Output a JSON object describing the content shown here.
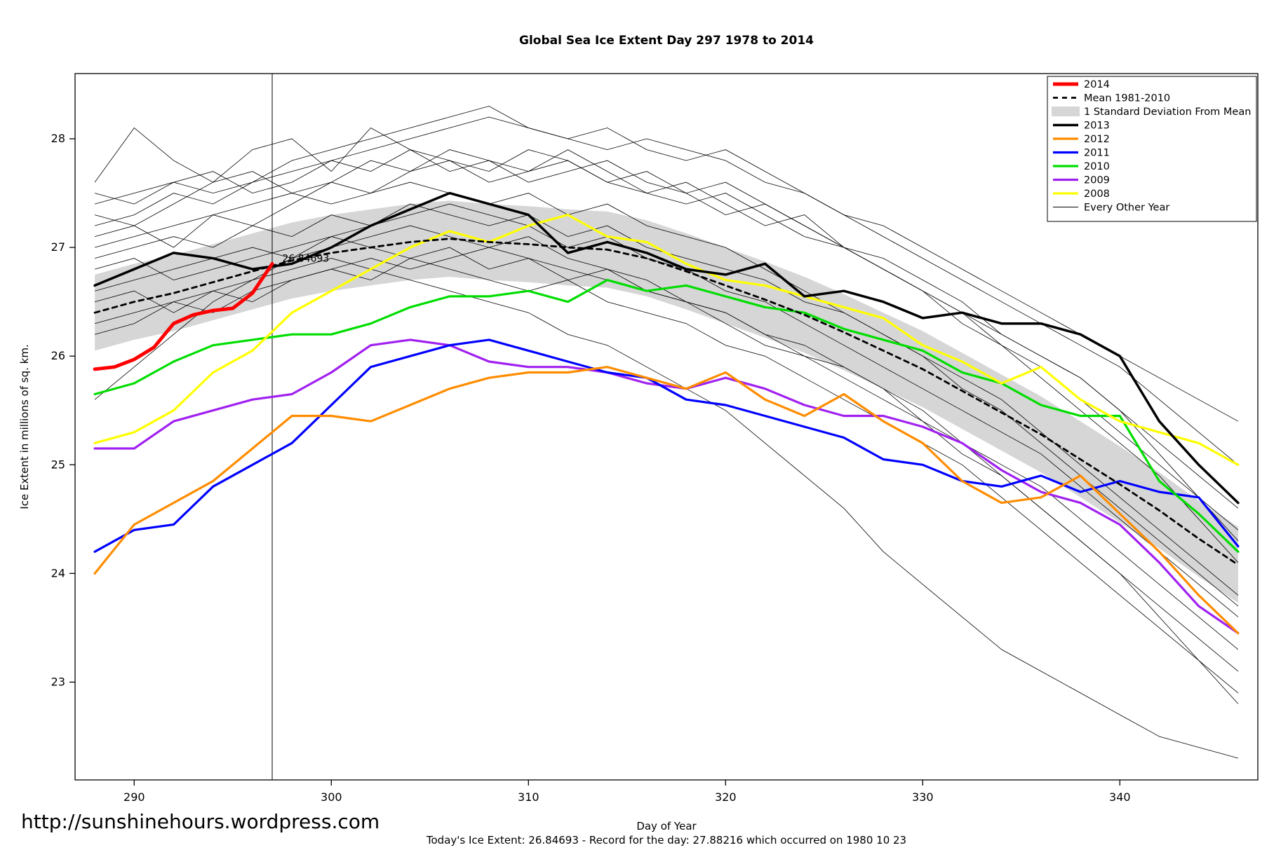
{
  "chart_data": {
    "type": "line",
    "title": "Global Sea Ice Extent Day 297 1978 to 2014",
    "xlabel": "Day of Year",
    "ylabel": "Ice Extent in millions of sq. km.",
    "xlim": [
      287,
      347
    ],
    "ylim": [
      22.1,
      28.6
    ],
    "x_ticks": [
      290,
      300,
      310,
      320,
      330,
      340
    ],
    "y_ticks": [
      23,
      24,
      25,
      26,
      27,
      28
    ],
    "grid": false,
    "legend_position": "top-right",
    "x": [
      288,
      290,
      292,
      294,
      296,
      298,
      300,
      302,
      304,
      306,
      308,
      310,
      312,
      314,
      316,
      318,
      320,
      322,
      324,
      326,
      328,
      330,
      332,
      334,
      336,
      338,
      340,
      342,
      344,
      346
    ],
    "band": {
      "label": "1 Standard Deviation From Mean",
      "color": "#d6d6d6",
      "upper": [
        26.75,
        26.85,
        26.93,
        27.03,
        27.13,
        27.23,
        27.3,
        27.35,
        27.4,
        27.43,
        27.4,
        27.38,
        27.35,
        27.33,
        27.25,
        27.13,
        27.0,
        26.87,
        26.73,
        26.57,
        26.4,
        26.23,
        26.03,
        25.83,
        25.63,
        25.4,
        25.17,
        24.93,
        24.67,
        24.43
      ],
      "lower": [
        26.05,
        26.15,
        26.23,
        26.33,
        26.43,
        26.53,
        26.6,
        26.65,
        26.7,
        26.73,
        26.7,
        26.68,
        26.65,
        26.63,
        26.55,
        26.43,
        26.3,
        26.17,
        26.03,
        25.87,
        25.7,
        25.53,
        25.33,
        25.13,
        24.93,
        24.7,
        24.47,
        24.23,
        23.97,
        23.73
      ]
    },
    "other_years": {
      "label": "Every Other Year",
      "color": "#000000",
      "width": 0.8,
      "series": [
        [
          27.4,
          27.5,
          27.6,
          27.5,
          27.6,
          27.7,
          27.8,
          27.9,
          28.0,
          28.1,
          28.2,
          28.1,
          28.0,
          27.9,
          28.0,
          27.9,
          27.8,
          27.6,
          27.5,
          27.3,
          27.1,
          26.9,
          26.7,
          26.5,
          26.3,
          26.1,
          25.9,
          25.6,
          25.3,
          25.0
        ],
        [
          27.1,
          27.2,
          27.0,
          27.3,
          27.2,
          27.4,
          27.6,
          27.5,
          27.7,
          27.8,
          27.6,
          27.7,
          27.9,
          27.7,
          27.5,
          27.6,
          27.4,
          27.2,
          27.3,
          27.0,
          26.8,
          26.6,
          26.4,
          26.2,
          26.0,
          25.8,
          25.5,
          25.2,
          24.9,
          24.6
        ],
        [
          27.6,
          28.1,
          27.8,
          27.6,
          27.7,
          27.5,
          27.6,
          27.8,
          27.7,
          27.9,
          27.8,
          27.7,
          27.8,
          27.6,
          27.7,
          27.5,
          27.6,
          27.4,
          27.2,
          27.0,
          26.9,
          26.7,
          26.5,
          26.2,
          26.0,
          25.8,
          25.5,
          25.1,
          24.7,
          24.3
        ],
        [
          26.9,
          27.0,
          27.1,
          27.0,
          27.2,
          27.1,
          27.3,
          27.2,
          27.4,
          27.3,
          27.2,
          27.3,
          27.1,
          27.2,
          27.0,
          26.9,
          26.8,
          26.7,
          26.5,
          26.4,
          26.2,
          26.0,
          25.8,
          25.6,
          25.3,
          25.0,
          24.7,
          24.4,
          24.1,
          23.8
        ],
        [
          26.6,
          26.7,
          26.8,
          26.9,
          27.0,
          26.9,
          27.1,
          27.0,
          26.9,
          27.0,
          26.8,
          26.9,
          26.7,
          26.8,
          26.6,
          26.5,
          26.4,
          26.2,
          26.0,
          25.9,
          25.7,
          25.5,
          25.2,
          25.0,
          24.8,
          24.5,
          24.2,
          23.9,
          23.6,
          23.3
        ],
        [
          25.6,
          25.9,
          26.2,
          26.5,
          26.7,
          26.9,
          27.0,
          27.1,
          27.2,
          27.1,
          27.0,
          27.1,
          26.9,
          26.8,
          26.7,
          26.5,
          26.4,
          26.2,
          26.1,
          25.9,
          25.7,
          25.4,
          25.2,
          24.9,
          24.6,
          24.3,
          24.0,
          23.6,
          23.2,
          22.8
        ],
        [
          26.3,
          26.4,
          26.5,
          26.6,
          26.7,
          26.8,
          26.9,
          26.8,
          26.7,
          26.6,
          26.5,
          26.4,
          26.2,
          26.1,
          25.9,
          25.7,
          25.5,
          25.2,
          24.9,
          24.6,
          24.2,
          23.9,
          23.6,
          23.3,
          23.1,
          22.9,
          22.7,
          22.5,
          22.4,
          22.3
        ],
        [
          27.0,
          27.1,
          27.2,
          27.3,
          27.4,
          27.5,
          27.4,
          27.5,
          27.6,
          27.5,
          27.4,
          27.5,
          27.3,
          27.4,
          27.2,
          27.1,
          27.0,
          26.8,
          26.6,
          26.4,
          26.2,
          26.0,
          25.7,
          25.5,
          25.2,
          24.9,
          24.6,
          24.3,
          24.0,
          23.7
        ],
        [
          26.8,
          26.9,
          26.7,
          26.8,
          26.9,
          27.0,
          27.1,
          27.2,
          27.3,
          27.4,
          27.3,
          27.2,
          27.0,
          27.1,
          26.9,
          26.8,
          26.6,
          26.5,
          26.3,
          26.1,
          25.9,
          25.7,
          25.5,
          25.3,
          25.1,
          24.8,
          24.5,
          24.2,
          23.9,
          23.6
        ],
        [
          27.2,
          27.3,
          27.5,
          27.4,
          27.6,
          27.8,
          27.9,
          28.0,
          28.1,
          28.2,
          28.3,
          28.1,
          28.0,
          28.1,
          27.9,
          27.8,
          27.9,
          27.7,
          27.5,
          27.3,
          27.2,
          27.0,
          26.8,
          26.6,
          26.4,
          26.2,
          26.0,
          25.8,
          25.6,
          25.4
        ],
        [
          26.5,
          26.6,
          26.4,
          26.6,
          26.5,
          26.7,
          26.8,
          26.9,
          26.8,
          26.9,
          27.0,
          26.9,
          26.8,
          26.7,
          26.6,
          26.5,
          26.3,
          26.1,
          26.0,
          25.8,
          25.6,
          25.4,
          25.1,
          24.9,
          24.6,
          24.3,
          24.0,
          23.7,
          23.4,
          23.1
        ],
        [
          27.3,
          27.2,
          27.4,
          27.6,
          27.9,
          28.0,
          27.7,
          28.1,
          27.9,
          27.7,
          27.8,
          27.6,
          27.7,
          27.8,
          27.6,
          27.5,
          27.3,
          27.4,
          27.2,
          27.0,
          26.8,
          26.6,
          26.4,
          26.1,
          25.9,
          25.6,
          25.3,
          25.0,
          24.7,
          24.4
        ],
        [
          26.2,
          26.3,
          26.5,
          26.4,
          26.6,
          26.7,
          26.8,
          26.7,
          26.9,
          26.8,
          26.7,
          26.6,
          26.7,
          26.5,
          26.4,
          26.3,
          26.1,
          26.0,
          25.8,
          25.6,
          25.4,
          25.2,
          25.0,
          24.7,
          24.4,
          24.1,
          23.8,
          23.5,
          23.2,
          22.9
        ],
        [
          27.5,
          27.4,
          27.6,
          27.7,
          27.5,
          27.6,
          27.8,
          27.7,
          27.9,
          27.8,
          27.7,
          27.9,
          27.8,
          27.6,
          27.5,
          27.4,
          27.5,
          27.3,
          27.1,
          27.0,
          26.8,
          26.6,
          26.3,
          26.1,
          25.8,
          25.5,
          25.2,
          24.9,
          24.5,
          24.1
        ]
      ]
    },
    "series": [
      {
        "name": "2009",
        "color": "#a020f0",
        "width": 3.2,
        "values": [
          25.15,
          25.15,
          25.4,
          25.5,
          25.6,
          25.65,
          25.85,
          26.1,
          26.15,
          26.1,
          25.95,
          25.9,
          25.9,
          25.85,
          25.75,
          25.7,
          25.8,
          25.7,
          25.55,
          25.45,
          25.45,
          25.35,
          25.2,
          24.95,
          24.75,
          24.65,
          24.45,
          24.1,
          23.7,
          23.45
        ]
      },
      {
        "name": "2011",
        "color": "#0000ff",
        "width": 3.2,
        "values": [
          24.2,
          24.4,
          24.45,
          24.8,
          25.0,
          25.2,
          25.55,
          25.9,
          26.0,
          26.1,
          26.15,
          26.05,
          25.95,
          25.85,
          25.8,
          25.6,
          25.55,
          25.45,
          25.35,
          25.25,
          25.05,
          25.0,
          24.85,
          24.8,
          24.9,
          24.75,
          24.85,
          24.75,
          24.7,
          24.25
        ]
      },
      {
        "name": "2012",
        "color": "#ff8c00",
        "width": 3.2,
        "values": [
          24.0,
          24.45,
          24.65,
          24.85,
          25.15,
          25.45,
          25.45,
          25.4,
          25.55,
          25.7,
          25.8,
          25.85,
          25.85,
          25.9,
          25.8,
          25.7,
          25.85,
          25.6,
          25.45,
          25.65,
          25.4,
          25.2,
          24.85,
          24.65,
          24.7,
          24.9,
          24.55,
          24.2,
          23.8,
          23.45
        ]
      },
      {
        "name": "2010",
        "color": "#00dd00",
        "width": 3.2,
        "values": [
          25.65,
          25.75,
          25.95,
          26.1,
          26.15,
          26.2,
          26.2,
          26.3,
          26.45,
          26.55,
          26.55,
          26.6,
          26.5,
          26.7,
          26.6,
          26.65,
          26.55,
          26.45,
          26.4,
          26.25,
          26.15,
          26.05,
          25.85,
          25.75,
          25.55,
          25.45,
          25.45,
          24.85,
          24.55,
          24.2
        ]
      },
      {
        "name": "2008",
        "color": "#ffff00",
        "width": 3.2,
        "values": [
          25.2,
          25.3,
          25.5,
          25.85,
          26.05,
          26.4,
          26.6,
          26.8,
          27.0,
          27.15,
          27.05,
          27.2,
          27.3,
          27.1,
          27.05,
          26.85,
          26.7,
          26.65,
          26.55,
          26.45,
          26.35,
          26.1,
          25.95,
          25.75,
          25.9,
          25.6,
          25.4,
          25.3,
          25.2,
          25.0
        ]
      },
      {
        "name": "Mean 1981-2010",
        "color": "#000000",
        "width": 2.8,
        "dash": "7 6",
        "values": [
          26.4,
          26.5,
          26.58,
          26.68,
          26.78,
          26.88,
          26.95,
          27.0,
          27.05,
          27.08,
          27.05,
          27.03,
          27.0,
          26.98,
          26.9,
          26.78,
          26.65,
          26.52,
          26.38,
          26.22,
          26.05,
          25.88,
          25.68,
          25.48,
          25.28,
          25.05,
          24.82,
          24.58,
          24.32,
          24.08
        ]
      },
      {
        "name": "2013",
        "color": "#000000",
        "width": 3.5,
        "values": [
          26.65,
          26.8,
          26.95,
          26.9,
          26.8,
          26.85,
          27.0,
          27.2,
          27.35,
          27.5,
          27.4,
          27.3,
          26.95,
          27.05,
          26.95,
          26.8,
          26.75,
          26.85,
          26.55,
          26.6,
          26.5,
          26.35,
          26.4,
          26.3,
          26.3,
          26.2,
          26.0,
          25.4,
          25.0,
          24.65
        ]
      },
      {
        "name": "2014",
        "color": "#ff0000",
        "width": 5,
        "x": [
          288,
          289,
          290,
          291,
          292,
          293,
          294,
          295,
          296,
          297
        ],
        "values": [
          25.88,
          25.9,
          25.97,
          26.08,
          26.3,
          26.38,
          26.42,
          26.44,
          26.58,
          26.85
        ]
      }
    ],
    "vline_x": 297,
    "annotation": {
      "x": 297.3,
      "y": 26.87,
      "text": "26.84693",
      "color": "#ff0000"
    },
    "legend": [
      {
        "label": "2014",
        "swatch": "line",
        "color": "#ff0000",
        "width": 5
      },
      {
        "label": "Mean 1981-2010",
        "swatch": "line",
        "color": "#000000",
        "width": 2.8,
        "dash": "7 6"
      },
      {
        "label": "1 Standard Deviation From Mean",
        "swatch": "box",
        "color": "#d6d6d6"
      },
      {
        "label": "2013",
        "swatch": "line",
        "color": "#000000",
        "width": 3.5
      },
      {
        "label": "2012",
        "swatch": "line",
        "color": "#ff8c00",
        "width": 3.2
      },
      {
        "label": "2011",
        "swatch": "line",
        "color": "#0000ff",
        "width": 3.2
      },
      {
        "label": "2010",
        "swatch": "line",
        "color": "#00dd00",
        "width": 3.2
      },
      {
        "label": "2009",
        "swatch": "line",
        "color": "#a020f0",
        "width": 3.2
      },
      {
        "label": "2008",
        "swatch": "line",
        "color": "#ffff00",
        "width": 3.2
      },
      {
        "label": "Every Other Year",
        "swatch": "line",
        "color": "#000000",
        "width": 1
      }
    ]
  },
  "footer": {
    "url": "http://sunshinehours.wordpress.com",
    "caption": "Today's Ice Extent: 26.84693  - Record for the day: 27.88216 which occurred on 1980 10 23"
  }
}
